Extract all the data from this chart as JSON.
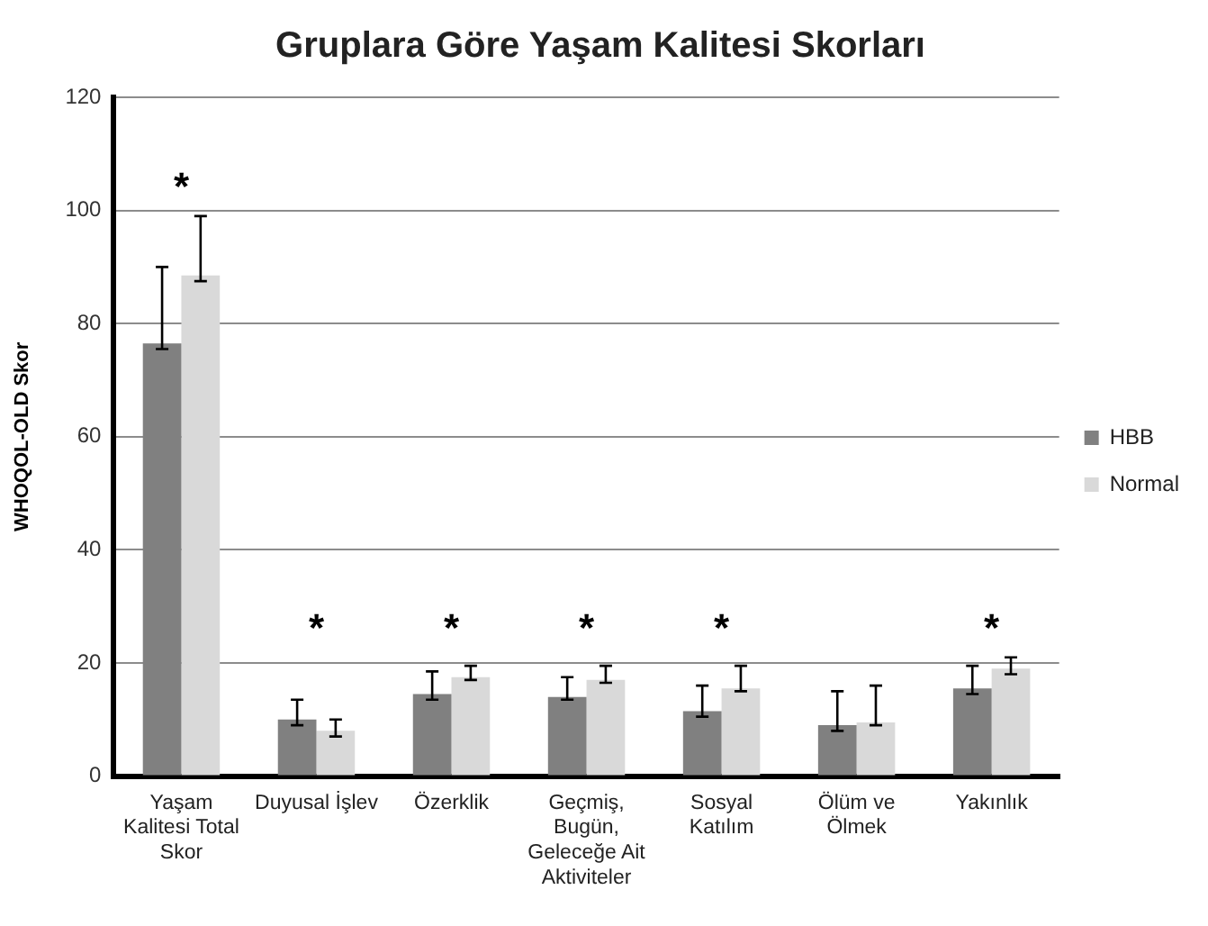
{
  "chart_data": {
    "type": "bar",
    "title": "Gruplara Göre Yaşam Kalitesi Skorları",
    "ylabel": "WHOQOL-OLD Skor",
    "categories": [
      "Yaşam Kalitesi Total Skor",
      "Duyusal İşlev",
      "Özerklik",
      "Geçmiş, Bugün, Geleceğe Ait Aktiviteler",
      "Sosyal Katılım",
      "Ölüm ve Ölmek",
      "Yakınlık"
    ],
    "series": [
      {
        "name": "HBB",
        "color": "#808080",
        "values": [
          76.5,
          10,
          14.5,
          14,
          11.5,
          9,
          15.5
        ],
        "errors": [
          [
            75.5,
            90
          ],
          [
            9,
            13.5
          ],
          [
            13.5,
            18.5
          ],
          [
            13.5,
            17.5
          ],
          [
            10.5,
            16
          ],
          [
            8,
            15
          ],
          [
            14.5,
            19.5
          ]
        ]
      },
      {
        "name": "Normal",
        "color": "#d9d9d9",
        "values": [
          88.5,
          8,
          17.5,
          17,
          15.5,
          9.5,
          19
        ],
        "errors": [
          [
            87.5,
            99
          ],
          [
            7,
            10
          ],
          [
            17,
            19.5
          ],
          [
            16.5,
            19.5
          ],
          [
            15,
            19.5
          ],
          [
            9,
            16
          ],
          [
            18,
            21
          ]
        ]
      }
    ],
    "ylim": [
      0,
      120
    ],
    "yticks": [
      0,
      20,
      40,
      60,
      80,
      100,
      120
    ],
    "grid": "y",
    "legend": "right",
    "annotations": [
      "*",
      "*",
      "*",
      "*",
      "*",
      "*"
    ]
  }
}
